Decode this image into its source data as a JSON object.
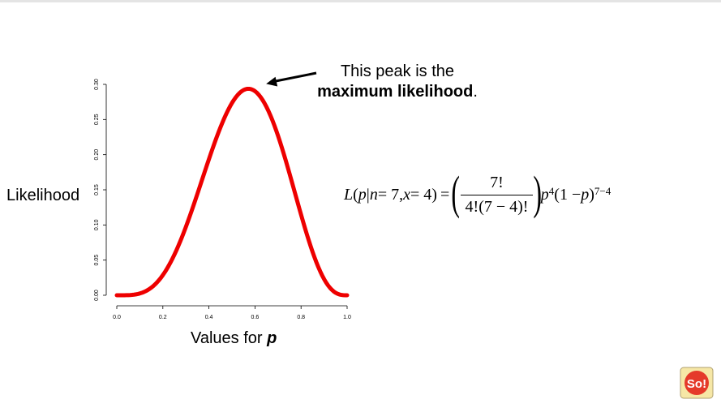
{
  "chart_data": {
    "type": "line",
    "title": "",
    "xlabel_prefix": "Values for ",
    "xlabel_var": "p",
    "ylabel": "Likelihood",
    "xlim": [
      0.0,
      1.0
    ],
    "ylim": [
      0.0,
      0.3
    ],
    "x_ticks": [
      "0.0",
      "0.2",
      "0.4",
      "0.6",
      "0.8",
      "1.0"
    ],
    "y_ticks": [
      "0.00",
      "0.05",
      "0.10",
      "0.15",
      "0.20",
      "0.25",
      "0.30"
    ],
    "x_tick_values": [
      0.0,
      0.2,
      0.4,
      0.6,
      0.8,
      1.0
    ],
    "y_tick_values": [
      0.0,
      0.05,
      0.1,
      0.15,
      0.2,
      0.25,
      0.3
    ],
    "series": [
      {
        "color": "#ee0000",
        "x": [
          0.0,
          0.05,
          0.1,
          0.15,
          0.2,
          0.25,
          0.3,
          0.35,
          0.4,
          0.45,
          0.5,
          0.55,
          0.571,
          0.6,
          0.65,
          0.7,
          0.75,
          0.8,
          0.85,
          0.9,
          0.95,
          1.0
        ],
        "y": [
          0.0,
          0.0002,
          0.0023,
          0.0109,
          0.0287,
          0.0577,
          0.0972,
          0.1442,
          0.1935,
          0.2388,
          0.2734,
          0.2918,
          0.2938,
          0.2903,
          0.2679,
          0.2269,
          0.173,
          0.1147,
          0.0617,
          0.023,
          0.0036,
          0.0
        ]
      }
    ],
    "annotation": {
      "line1": "This peak is the",
      "line2_bold": "maximum likelihood",
      "line2_tail": ".",
      "points_to_x": 0.571,
      "points_to_y": 0.2938
    }
  },
  "formula": {
    "lhs_L": "L",
    "lhs_open": "(",
    "lhs_p": "p",
    "lhs_bar": " | ",
    "lhs_n": "n",
    "lhs_n_val": " = 7, ",
    "lhs_x": "x",
    "lhs_x_val": " = 4)",
    "equals": " = ",
    "frac_num": "7!",
    "frac_den": "4!(7 − 4)!",
    "paren_open": "(",
    "paren_close": ")",
    "p1": "p",
    "exp1": "4",
    "mid": "(1 − ",
    "p2": "p",
    "mid_close": ")",
    "exp2": "7−4"
  },
  "logo": {
    "text": "So!"
  }
}
